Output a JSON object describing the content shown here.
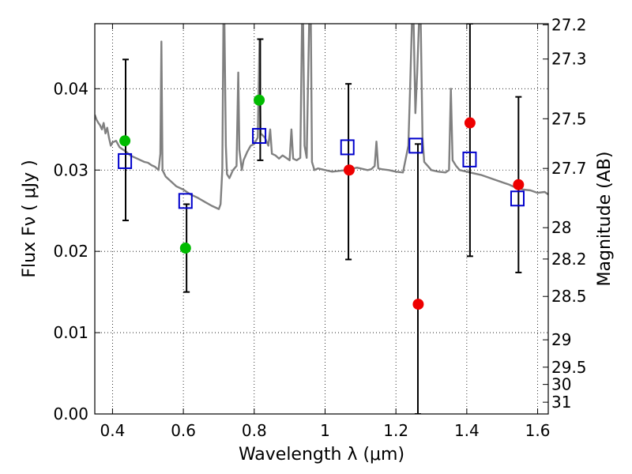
{
  "chart_data": {
    "type": "scatter",
    "title": "",
    "xlabel": "Wavelength  λ (μm)",
    "ylabel": "Flux  Fν  ( μJy )",
    "ylabel_right": "Magnitude (AB)",
    "xlim": [
      0.35,
      1.63
    ],
    "ylim": [
      0.0,
      0.048
    ],
    "grid": true,
    "x_ticks": [
      {
        "value": 0.4,
        "label": "0.4"
      },
      {
        "value": 0.6,
        "label": "0.6"
      },
      {
        "value": 0.8,
        "label": "0.8"
      },
      {
        "value": 1.0,
        "label": "1"
      },
      {
        "value": 1.2,
        "label": "1.2"
      },
      {
        "value": 1.4,
        "label": "1.4"
      },
      {
        "value": 1.6,
        "label": "1.6"
      }
    ],
    "y_ticks": [
      {
        "value": 0.0,
        "label": "0.00"
      },
      {
        "value": 0.01,
        "label": "0.01"
      },
      {
        "value": 0.02,
        "label": "0.02"
      },
      {
        "value": 0.03,
        "label": "0.03"
      },
      {
        "value": 0.04,
        "label": "0.04"
      }
    ],
    "right_ticks": [
      {
        "value": 27.2,
        "label": "27.2"
      },
      {
        "value": 27.3,
        "label": "27.3"
      },
      {
        "value": 27.5,
        "label": "27.5"
      },
      {
        "value": 27.7,
        "label": "27.7"
      },
      {
        "value": 28.0,
        "label": "28"
      },
      {
        "value": 28.2,
        "label": "28.2"
      },
      {
        "value": 28.5,
        "label": "28.5"
      },
      {
        "value": 29.0,
        "label": "29"
      },
      {
        "value": 29.5,
        "label": "29.5"
      },
      {
        "value": 30.0,
        "label": "30"
      },
      {
        "value": 31.0,
        "label": "31"
      }
    ],
    "series": [
      {
        "values": [
          [
            0.35,
            0.0368
          ],
          [
            0.355,
            0.0362
          ],
          [
            0.36,
            0.0358
          ],
          [
            0.365,
            0.0355
          ],
          [
            0.37,
            0.035
          ],
          [
            0.375,
            0.0358
          ],
          [
            0.38,
            0.0345
          ],
          [
            0.385,
            0.0352
          ],
          [
            0.39,
            0.034
          ],
          [
            0.395,
            0.033
          ],
          [
            0.4,
            0.0334
          ],
          [
            0.41,
            0.0336
          ],
          [
            0.42,
            0.0328
          ],
          [
            0.43,
            0.0325
          ],
          [
            0.44,
            0.0322
          ],
          [
            0.45,
            0.0318
          ],
          [
            0.46,
            0.0316
          ],
          [
            0.47,
            0.0314
          ],
          [
            0.48,
            0.0312
          ],
          [
            0.49,
            0.031
          ],
          [
            0.5,
            0.0309
          ],
          [
            0.51,
            0.0306
          ],
          [
            0.52,
            0.0304
          ],
          [
            0.53,
            0.03
          ],
          [
            0.535,
            0.032
          ],
          [
            0.538,
            0.0458
          ],
          [
            0.541,
            0.03
          ],
          [
            0.55,
            0.0292
          ],
          [
            0.56,
            0.0288
          ],
          [
            0.58,
            0.028
          ],
          [
            0.6,
            0.0276
          ],
          [
            0.62,
            0.027
          ],
          [
            0.64,
            0.0266
          ],
          [
            0.66,
            0.0261
          ],
          [
            0.68,
            0.0256
          ],
          [
            0.7,
            0.0252
          ],
          [
            0.705,
            0.0258
          ],
          [
            0.71,
            0.03
          ],
          [
            0.713,
            0.048
          ],
          [
            0.716,
            0.048
          ],
          [
            0.72,
            0.033
          ],
          [
            0.723,
            0.0295
          ],
          [
            0.73,
            0.029
          ],
          [
            0.74,
            0.03
          ],
          [
            0.75,
            0.0305
          ],
          [
            0.755,
            0.042
          ],
          [
            0.758,
            0.0325
          ],
          [
            0.765,
            0.03
          ],
          [
            0.77,
            0.0312
          ],
          [
            0.78,
            0.0322
          ],
          [
            0.79,
            0.033
          ],
          [
            0.8,
            0.0332
          ],
          [
            0.81,
            0.034
          ],
          [
            0.815,
            0.046
          ],
          [
            0.818,
            0.0345
          ],
          [
            0.83,
            0.034
          ],
          [
            0.84,
            0.033
          ],
          [
            0.845,
            0.035
          ],
          [
            0.85,
            0.032
          ],
          [
            0.86,
            0.0318
          ],
          [
            0.87,
            0.0314
          ],
          [
            0.88,
            0.0318
          ],
          [
            0.89,
            0.0315
          ],
          [
            0.9,
            0.0312
          ],
          [
            0.905,
            0.035
          ],
          [
            0.91,
            0.0314
          ],
          [
            0.92,
            0.0312
          ],
          [
            0.93,
            0.0315
          ],
          [
            0.935,
            0.048
          ],
          [
            0.938,
            0.048
          ],
          [
            0.942,
            0.033
          ],
          [
            0.948,
            0.0315
          ],
          [
            0.955,
            0.048
          ],
          [
            0.96,
            0.048
          ],
          [
            0.963,
            0.031
          ],
          [
            0.97,
            0.03
          ],
          [
            0.98,
            0.0302
          ],
          [
            1.0,
            0.03
          ],
          [
            1.02,
            0.0298
          ],
          [
            1.04,
            0.0299
          ],
          [
            1.06,
            0.03
          ],
          [
            1.08,
            0.0302
          ],
          [
            1.09,
            0.0303
          ],
          [
            1.1,
            0.0302
          ],
          [
            1.12,
            0.03
          ],
          [
            1.13,
            0.0301
          ],
          [
            1.14,
            0.0305
          ],
          [
            1.145,
            0.0335
          ],
          [
            1.15,
            0.0302
          ],
          [
            1.16,
            0.0301
          ],
          [
            1.18,
            0.03
          ],
          [
            1.2,
            0.0298
          ],
          [
            1.22,
            0.0297
          ],
          [
            1.235,
            0.033
          ],
          [
            1.24,
            0.04
          ],
          [
            1.245,
            0.048
          ],
          [
            1.25,
            0.048
          ],
          [
            1.255,
            0.037
          ],
          [
            1.26,
            0.042
          ],
          [
            1.265,
            0.048
          ],
          [
            1.27,
            0.048
          ],
          [
            1.275,
            0.034
          ],
          [
            1.28,
            0.031
          ],
          [
            1.29,
            0.0305
          ],
          [
            1.3,
            0.03
          ],
          [
            1.32,
            0.0298
          ],
          [
            1.34,
            0.0297
          ],
          [
            1.35,
            0.03
          ],
          [
            1.355,
            0.04
          ],
          [
            1.36,
            0.0312
          ],
          [
            1.37,
            0.0305
          ],
          [
            1.38,
            0.03
          ],
          [
            1.4,
            0.0298
          ],
          [
            1.42,
            0.0296
          ],
          [
            1.44,
            0.0294
          ],
          [
            1.46,
            0.0291
          ],
          [
            1.48,
            0.0288
          ],
          [
            1.5,
            0.0285
          ],
          [
            1.52,
            0.0282
          ],
          [
            1.54,
            0.0278
          ],
          [
            1.56,
            0.0276
          ],
          [
            1.58,
            0.0275
          ],
          [
            1.6,
            0.0272
          ],
          [
            1.62,
            0.0273
          ],
          [
            1.63,
            0.027
          ]
        ]
      },
      {
        "values": [
          [
            0.435,
            0.0311
          ],
          [
            0.606,
            0.0262
          ],
          [
            0.814,
            0.0342
          ],
          [
            1.063,
            0.0328
          ],
          [
            1.256,
            0.033
          ],
          [
            1.408,
            0.0313
          ],
          [
            1.543,
            0.0265
          ]
        ]
      },
      {
        "values": [
          [
            0.435,
            0.0336
          ],
          [
            0.606,
            0.0204
          ],
          [
            0.814,
            0.0386
          ]
        ]
      },
      {
        "values": [
          [
            1.068,
            0.03
          ],
          [
            1.263,
            0.0135
          ],
          [
            1.409,
            0.0358
          ],
          [
            1.546,
            0.0282
          ]
        ]
      },
      {
        "values": [
          [
            0.437,
            0.0238,
            0.0436
          ],
          [
            0.609,
            0.015,
            0.0258
          ],
          [
            0.817,
            0.0312,
            0.0461
          ],
          [
            1.066,
            0.019,
            0.0406
          ],
          [
            1.262,
            0.0,
            0.0332
          ],
          [
            1.409,
            0.0194,
            0.048
          ],
          [
            1.546,
            0.0174,
            0.039
          ]
        ]
      }
    ],
    "colors": {
      "spectrum": "#808080",
      "model_box": "#0000cc",
      "green": "#00bb00",
      "red": "#ee0000",
      "errorbar": "#000000",
      "grid": "#000000"
    }
  }
}
